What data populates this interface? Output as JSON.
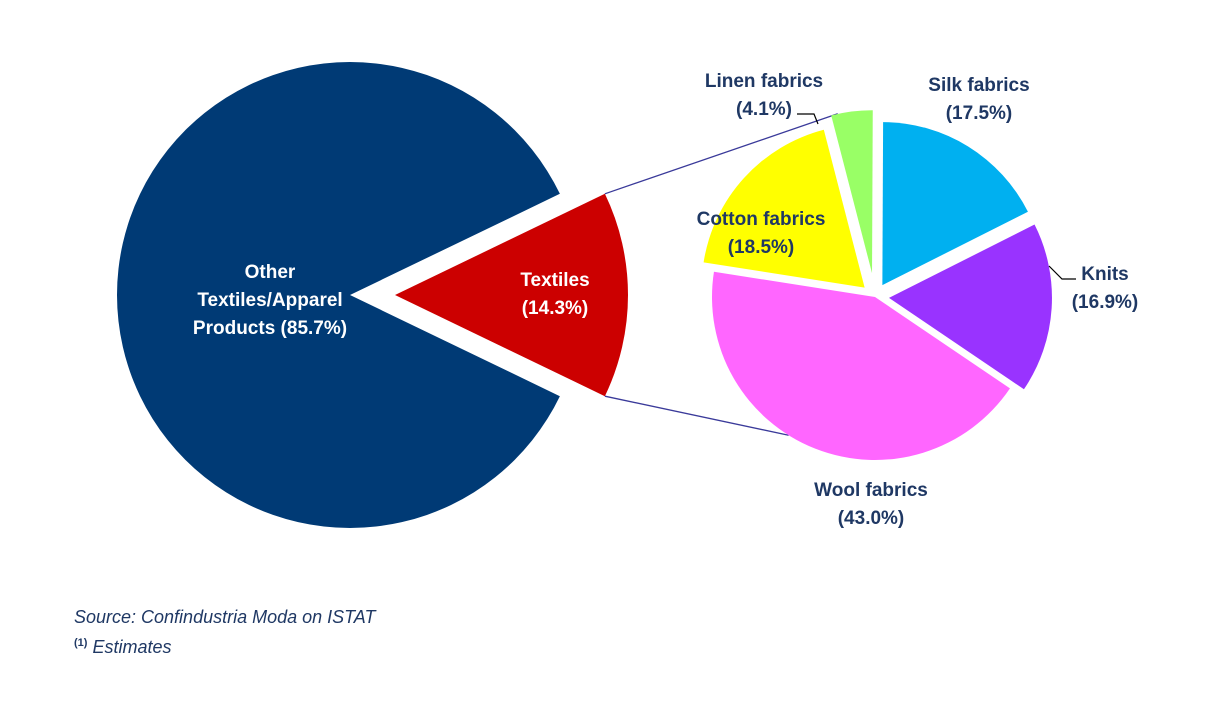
{
  "chart_data": [
    {
      "type": "pie",
      "slices": [
        {
          "label_lines": [
            "Other",
            "Textiles/Apparel",
            "Products (85.7%)"
          ],
          "value": 85.7,
          "color": "#003a75"
        },
        {
          "label_lines": [
            "Textiles",
            "(14.3%)"
          ],
          "value": 14.3,
          "color": "#cc0000"
        }
      ]
    },
    {
      "type": "pie",
      "slices": [
        {
          "label_lines": [
            "Linen fabrics",
            "(4.1%)"
          ],
          "value": 4.1,
          "color": "#99ff66"
        },
        {
          "label_lines": [
            "Silk fabrics",
            "(17.5%)"
          ],
          "value": 17.5,
          "color": "#00b0f0"
        },
        {
          "label_lines": [
            "Knits",
            "(16.9%)"
          ],
          "value": 16.9,
          "color": "#9933ff"
        },
        {
          "label_lines": [
            "Wool fabrics",
            "(43.0%)"
          ],
          "value": 43.0,
          "color": "#ff66ff"
        },
        {
          "label_lines": [
            "Cotton fabrics",
            "(18.5%)"
          ],
          "value": 18.5,
          "color": "#ffff00"
        }
      ]
    }
  ],
  "colors": {
    "label_dark": "#1f3864",
    "label_light": "#ffffff",
    "connector": "#3a3a9a"
  },
  "source": {
    "text": "Source: Confindustria Moda  on ISTAT",
    "footnote_mark": "(1)",
    "footnote_text": " Estimates"
  }
}
